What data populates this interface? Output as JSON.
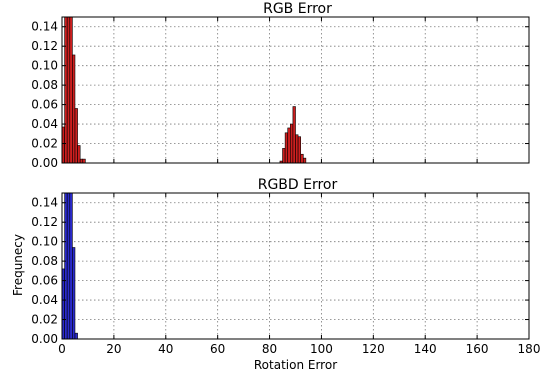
{
  "chart_data": [
    {
      "type": "bar",
      "title": "RGB Error",
      "xlabel": "",
      "ylabel": "",
      "xlim": [
        0,
        180
      ],
      "ylim": [
        0,
        0.15
      ],
      "xticks": [
        0,
        20,
        40,
        60,
        80,
        100,
        120,
        140,
        160,
        180
      ],
      "yticks": [
        0.0,
        0.02,
        0.04,
        0.06,
        0.08,
        0.1,
        0.12,
        0.14
      ],
      "grid": true,
      "bin_width": 1,
      "color": "#cc1f1f",
      "x": [
        0,
        1,
        2,
        3,
        4,
        5,
        6,
        7,
        8,
        84,
        85,
        86,
        87,
        88,
        89,
        90,
        91,
        92,
        93
      ],
      "values": [
        0.037,
        0.15,
        0.15,
        0.15,
        0.111,
        0.056,
        0.018,
        0.004,
        0.004,
        0.002,
        0.015,
        0.031,
        0.036,
        0.04,
        0.058,
        0.029,
        0.027,
        0.009,
        0.005
      ]
    },
    {
      "type": "bar",
      "title": "RGBD Error",
      "xlabel": "Rotation Error",
      "ylabel": "Frequnecy",
      "xlim": [
        0,
        180
      ],
      "ylim": [
        0,
        0.15
      ],
      "xticks": [
        0,
        20,
        40,
        60,
        80,
        100,
        120,
        140,
        160,
        180
      ],
      "yticks": [
        0.0,
        0.02,
        0.04,
        0.06,
        0.08,
        0.1,
        0.12,
        0.14
      ],
      "grid": true,
      "bin_width": 1,
      "color": "#2a2acc",
      "x": [
        0,
        1,
        2,
        3,
        4,
        5
      ],
      "values": [
        0.072,
        0.15,
        0.15,
        0.15,
        0.094,
        0.006
      ]
    }
  ]
}
